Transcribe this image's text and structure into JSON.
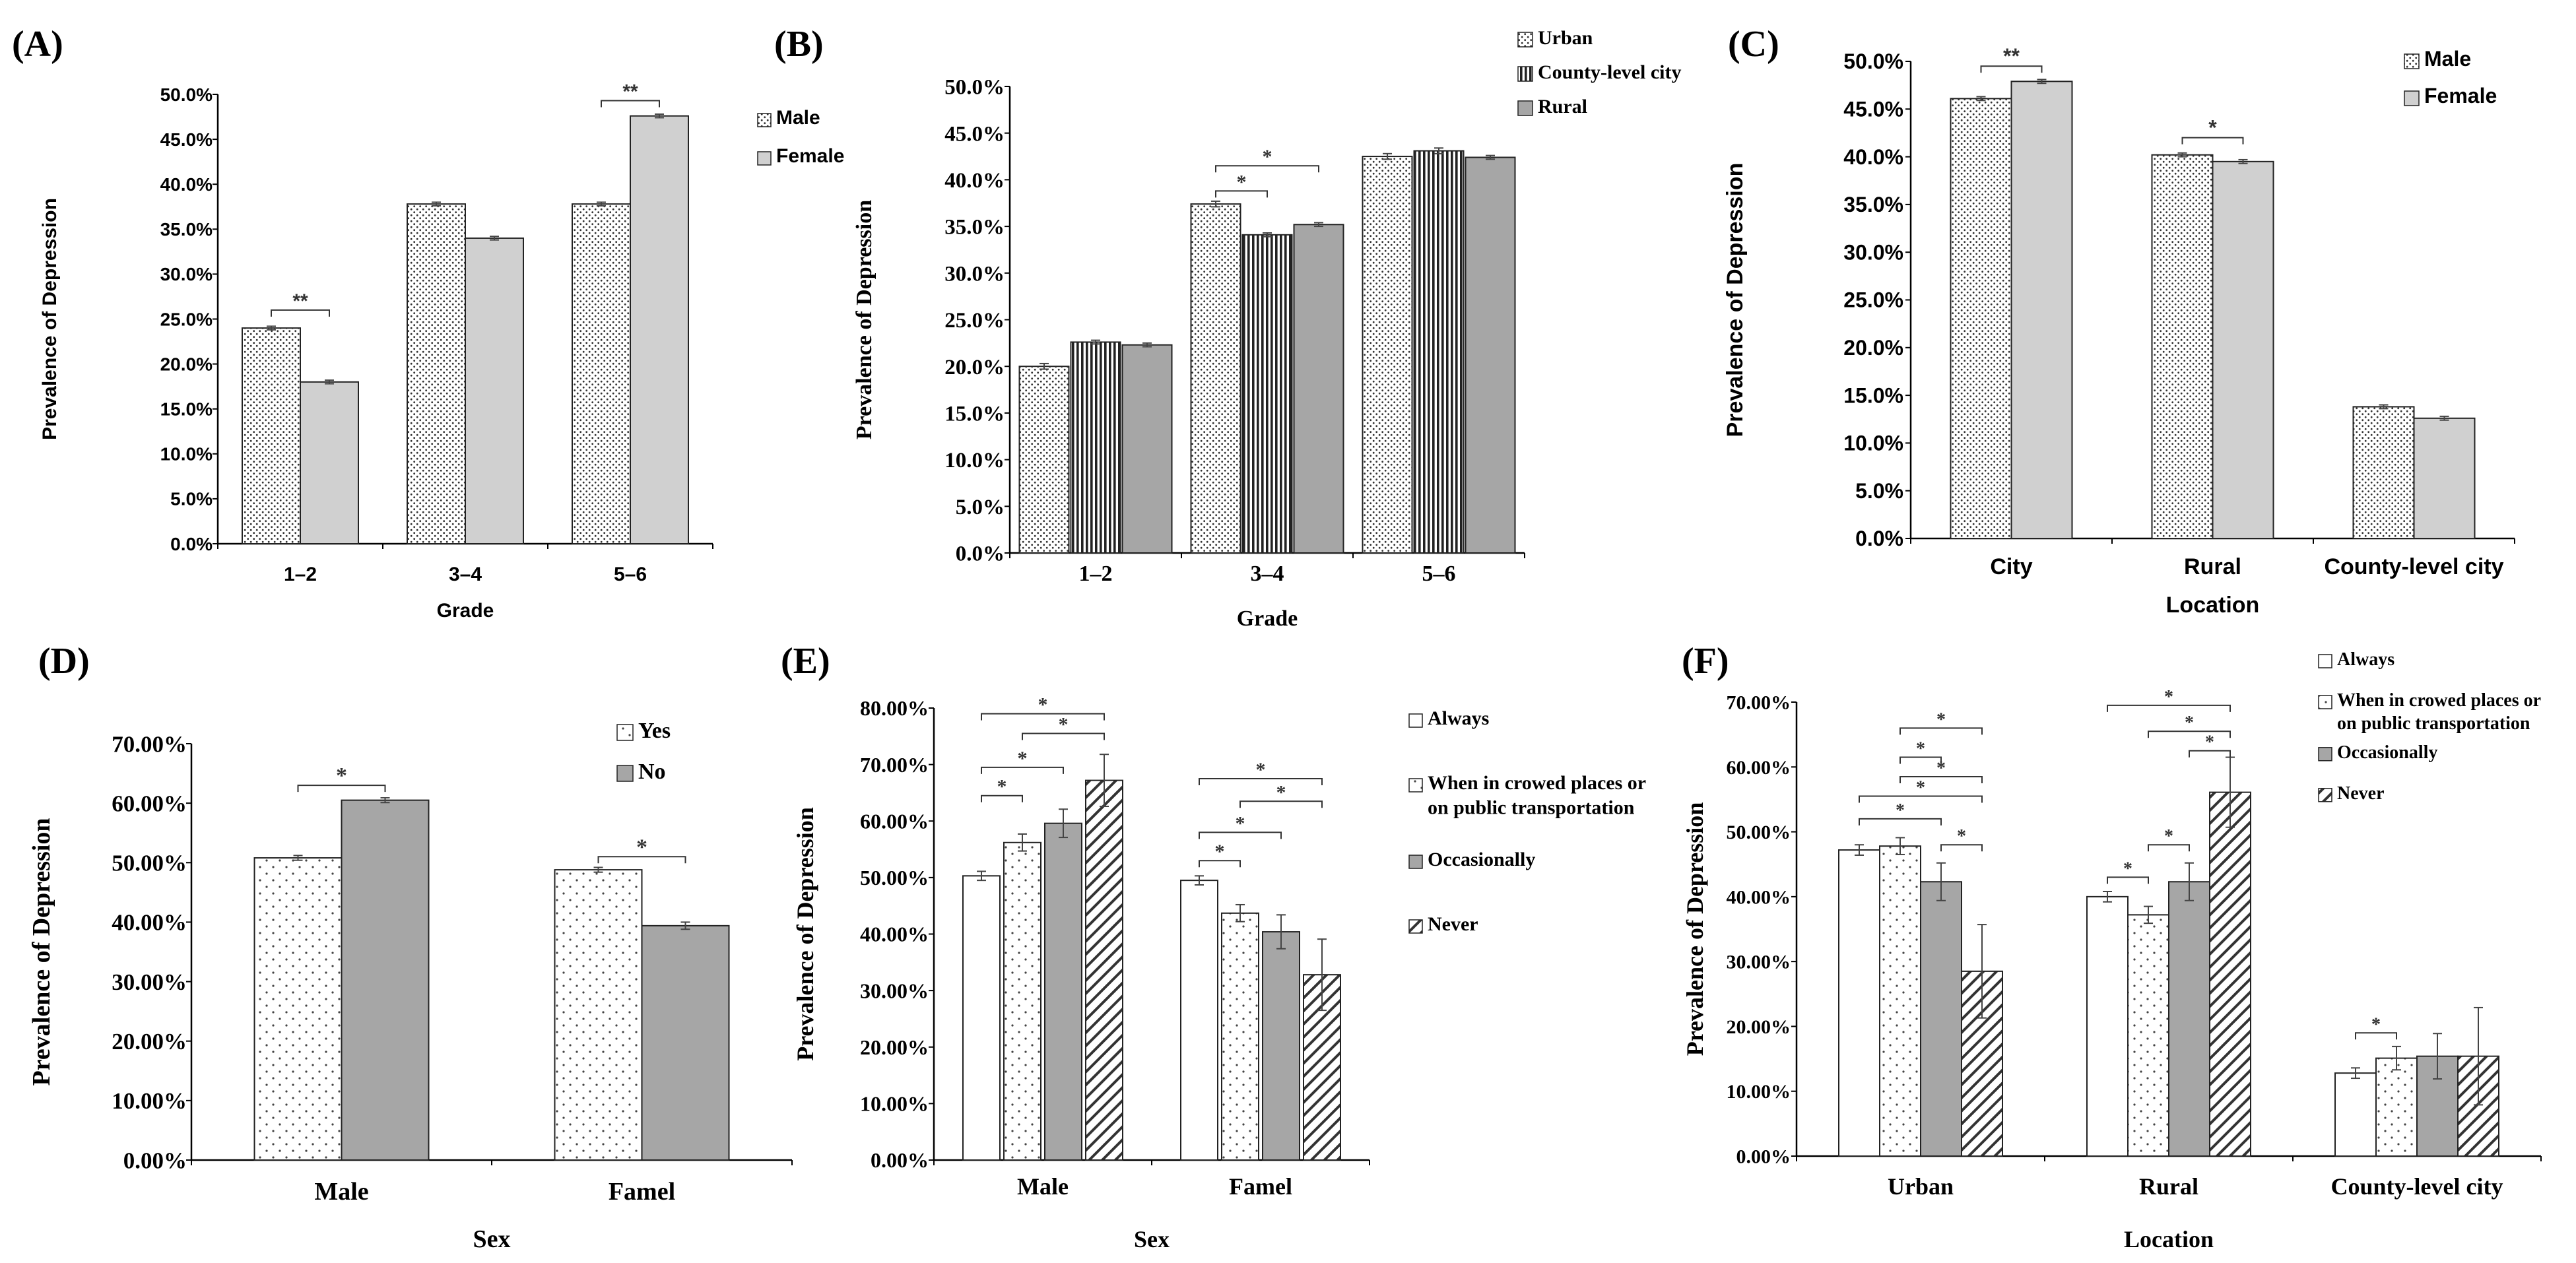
{
  "figure": {
    "colors": {
      "axis": "#000000",
      "bar_stroke": "#222222",
      "light_gray": "#d0d0d0",
      "mid_gray": "#a6a6a6",
      "white": "#ffffff"
    }
  },
  "chart_data": [
    {
      "id": "A",
      "panel_label": "(A)",
      "type": "bar",
      "font": "sans",
      "title": "",
      "xlabel": "Grade",
      "ylabel": "Prevalence of Depression",
      "categories": [
        "1–2",
        "3–4",
        "5–6"
      ],
      "ylim": [
        0,
        50
      ],
      "yticks": [
        "0.0%",
        "5.0%",
        "10.0%",
        "15.0%",
        "20.0%",
        "25.0%",
        "30.0%",
        "35.0%",
        "40.0%",
        "45.0%",
        "50.0%"
      ],
      "legend_position": "top-right",
      "series": [
        {
          "name": "Male",
          "pattern": "dots",
          "values": [
            24.0,
            37.8,
            37.8
          ],
          "errors": [
            0.2,
            0.2,
            0.2
          ]
        },
        {
          "name": "Female",
          "pattern": "lightgray",
          "values": [
            18.0,
            34.0,
            47.6
          ],
          "errors": [
            0.2,
            0.2,
            0.2
          ]
        }
      ],
      "significance": [
        {
          "category": 0,
          "from": 0,
          "to": 1,
          "label": "**",
          "y": 26.0
        },
        {
          "category": 2,
          "from": 0,
          "to": 1,
          "label": "**",
          "y": 49.3
        }
      ]
    },
    {
      "id": "B",
      "panel_label": "(B)",
      "type": "bar",
      "font": "serif",
      "title": "",
      "xlabel": "Grade",
      "ylabel": "Prevalence of Depression",
      "categories": [
        "1–2",
        "3–4",
        "5–6"
      ],
      "ylim": [
        0,
        50
      ],
      "yticks": [
        "0.0%",
        "5.0%",
        "10.0%",
        "15.0%",
        "20.0%",
        "25.0%",
        "30.0%",
        "35.0%",
        "40.0%",
        "45.0%",
        "50.0%"
      ],
      "legend_position": "top-right",
      "series": [
        {
          "name": "Urban",
          "pattern": "dots",
          "values": [
            20.0,
            37.4,
            42.5
          ],
          "errors": [
            0.3,
            0.3,
            0.3
          ]
        },
        {
          "name": "County-level city",
          "pattern": "vlines",
          "values": [
            22.6,
            34.1,
            43.1
          ],
          "errors": [
            0.2,
            0.2,
            0.3
          ]
        },
        {
          "name": "Rural",
          "pattern": "midgray",
          "values": [
            22.3,
            35.2,
            42.4
          ],
          "errors": [
            0.2,
            0.2,
            0.2
          ]
        }
      ],
      "significance": [
        {
          "category": 1,
          "from": 0,
          "to": 1,
          "label": "*",
          "y": 38.8
        },
        {
          "category": 1,
          "from": 0,
          "to": 2,
          "label": "*",
          "y": 41.5
        }
      ]
    },
    {
      "id": "C",
      "panel_label": "(C)",
      "type": "bar",
      "font": "sans",
      "title": "",
      "xlabel": "Location",
      "ylabel": "Prevalence of Depression",
      "categories": [
        "City",
        "Rural",
        "County-level city"
      ],
      "ylim": [
        0,
        50
      ],
      "yticks": [
        "0.0%",
        "5.0%",
        "10.0%",
        "15.0%",
        "20.0%",
        "25.0%",
        "30.0%",
        "35.0%",
        "40.0%",
        "45.0%",
        "50.0%"
      ],
      "legend_position": "top-right",
      "series": [
        {
          "name": "Male",
          "pattern": "dots",
          "values": [
            46.1,
            40.2,
            13.8
          ],
          "errors": [
            0.2,
            0.2,
            0.2
          ]
        },
        {
          "name": "Female",
          "pattern": "lightgray",
          "values": [
            47.9,
            39.5,
            12.6
          ],
          "errors": [
            0.2,
            0.2,
            0.2
          ]
        }
      ],
      "significance": [
        {
          "category": 0,
          "from": 0,
          "to": 1,
          "label": "**",
          "y": 49.5
        },
        {
          "category": 1,
          "from": 0,
          "to": 1,
          "label": "*",
          "y": 42.0
        }
      ]
    },
    {
      "id": "D",
      "panel_label": "(D)",
      "type": "bar",
      "font": "serif",
      "title": "",
      "xlabel": "Sex",
      "ylabel": "Prevalence of Depression",
      "categories": [
        "Male",
        "Famel"
      ],
      "ylim": [
        0,
        70
      ],
      "yticks": [
        "0.00%",
        "10.00%",
        "20.00%",
        "30.00%",
        "40.00%",
        "50.00%",
        "60.00%",
        "70.00%"
      ],
      "legend_position": "top-right",
      "series": [
        {
          "name": "Yes",
          "pattern": "sparsedots",
          "values": [
            50.8,
            48.8
          ],
          "errors": [
            0.4,
            0.4
          ]
        },
        {
          "name": "No",
          "pattern": "midgray",
          "values": [
            60.5,
            39.4
          ],
          "errors": [
            0.4,
            0.6
          ]
        }
      ],
      "significance": [
        {
          "category": 0,
          "from": 0,
          "to": 1,
          "label": "*",
          "y": 63.0
        },
        {
          "category": 1,
          "from": 0,
          "to": 1,
          "label": "*",
          "y": 51.0
        }
      ]
    },
    {
      "id": "E",
      "panel_label": "(E)",
      "type": "bar",
      "font": "serif",
      "title": "",
      "xlabel": "Sex",
      "ylabel": "Prevalence of Depression",
      "categories": [
        "Male",
        "Famel"
      ],
      "ylim": [
        0,
        80
      ],
      "yticks": [
        "0.00%",
        "10.00%",
        "20.00%",
        "30.00%",
        "40.00%",
        "50.00%",
        "60.00%",
        "70.00%",
        "80.00%"
      ],
      "legend_position": "right",
      "series": [
        {
          "name": "Always",
          "pattern": "white",
          "values": [
            50.3,
            49.5
          ],
          "errors": [
            0.8,
            0.8
          ]
        },
        {
          "name": "When in crowed places or on public transportation",
          "pattern": "sparsedots",
          "values": [
            56.2,
            43.7
          ],
          "errors": [
            1.5,
            1.5
          ]
        },
        {
          "name": "Occasionally",
          "pattern": "midgray",
          "values": [
            59.6,
            40.4
          ],
          "errors": [
            2.5,
            3.0
          ]
        },
        {
          "name": "Never",
          "pattern": "diag",
          "values": [
            67.2,
            32.8
          ],
          "errors": [
            4.6,
            6.3
          ]
        }
      ],
      "significance": [
        {
          "category": 0,
          "from": 0,
          "to": 1,
          "label": "*",
          "y": 64.5
        },
        {
          "category": 0,
          "from": 0,
          "to": 2,
          "label": "*",
          "y": 69.5
        },
        {
          "category": 0,
          "from": 1,
          "to": 3,
          "label": "*",
          "y": 75.5
        },
        {
          "category": 0,
          "from": 0,
          "to": 3,
          "label": "*",
          "y": 79.0
        },
        {
          "category": 1,
          "from": 0,
          "to": 1,
          "label": "*",
          "y": 53.0
        },
        {
          "category": 1,
          "from": 0,
          "to": 2,
          "label": "*",
          "y": 58.0
        },
        {
          "category": 1,
          "from": 1,
          "to": 3,
          "label": "*",
          "y": 63.5
        },
        {
          "category": 1,
          "from": 0,
          "to": 3,
          "label": "*",
          "y": 67.5
        }
      ]
    },
    {
      "id": "F",
      "panel_label": "(F)",
      "type": "bar",
      "font": "serif",
      "title": "",
      "xlabel": "Location",
      "ylabel": "Prevalence of Depression",
      "categories": [
        "Urban",
        "Rural",
        "County-level city"
      ],
      "ylim": [
        0,
        70
      ],
      "yticks": [
        "0.00%",
        "10.00%",
        "20.00%",
        "30.00%",
        "40.00%",
        "50.00%",
        "60.00%",
        "70.00%"
      ],
      "legend_position": "top-right",
      "series": [
        {
          "name": "Always",
          "pattern": "white",
          "values": [
            47.2,
            40.0,
            12.8
          ],
          "errors": [
            0.8,
            0.8,
            0.8
          ]
        },
        {
          "name": "When in crowed places or on public transportation",
          "pattern": "sparsedots",
          "values": [
            47.8,
            37.2,
            15.1
          ],
          "errors": [
            1.3,
            1.3,
            1.8
          ]
        },
        {
          "name": "Occasionally",
          "pattern": "midgray",
          "values": [
            42.3,
            42.3,
            15.4
          ],
          "errors": [
            2.9,
            2.9,
            3.5
          ]
        },
        {
          "name": "Never",
          "pattern": "diag",
          "values": [
            28.5,
            56.1,
            15.4
          ],
          "errors": [
            7.2,
            5.4,
            7.5
          ]
        }
      ],
      "significance": [
        {
          "category": 0,
          "from": 2,
          "to": 3,
          "label": "*",
          "y": 48.0
        },
        {
          "category": 0,
          "from": 0,
          "to": 2,
          "label": "*",
          "y": 52.0
        },
        {
          "category": 0,
          "from": 0,
          "to": 3,
          "label": "*",
          "y": 55.5
        },
        {
          "category": 0,
          "from": 1,
          "to": 3,
          "label": "*",
          "y": 58.5
        },
        {
          "category": 0,
          "from": 1,
          "to": 2,
          "label": "*",
          "y": 61.5
        },
        {
          "category": 0,
          "from": 1,
          "to": 3,
          "label": "*",
          "y": 66.0
        },
        {
          "category": 1,
          "from": 0,
          "to": 1,
          "label": "*",
          "y": 43.0
        },
        {
          "category": 1,
          "from": 1,
          "to": 2,
          "label": "*",
          "y": 48.0
        },
        {
          "category": 1,
          "from": 2,
          "to": 3,
          "label": "*",
          "y": 62.5
        },
        {
          "category": 1,
          "from": 1,
          "to": 3,
          "label": "*",
          "y": 65.5
        },
        {
          "category": 1,
          "from": 0,
          "to": 3,
          "label": "*",
          "y": 69.5
        },
        {
          "category": 2,
          "from": 0,
          "to": 1,
          "label": "*",
          "y": 19.0
        }
      ]
    }
  ]
}
